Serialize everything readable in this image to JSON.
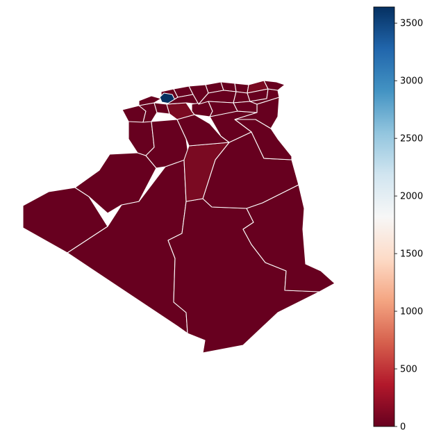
{
  "map": {
    "colormap": "RdBu",
    "colors": {
      "low": "#67001f",
      "low_mid": "#7a0a22",
      "high": "#053061",
      "border": "#ffffff"
    },
    "highlighted_region": "Algiers"
  },
  "colorbar": {
    "min": 0,
    "max": 3640,
    "ticks": [
      {
        "value": 0,
        "label": "0"
      },
      {
        "value": 500,
        "label": "500"
      },
      {
        "value": 1000,
        "label": "1000"
      },
      {
        "value": 1500,
        "label": "1500"
      },
      {
        "value": 2000,
        "label": "2000"
      },
      {
        "value": 2500,
        "label": "2500"
      },
      {
        "value": 3000,
        "label": "3000"
      },
      {
        "value": 3500,
        "label": "3500"
      }
    ],
    "stops": [
      "#053061",
      "#2166ac",
      "#4393c3",
      "#92c5de",
      "#d1e5f0",
      "#f7f7f7",
      "#fddbc7",
      "#f4a582",
      "#d6604d",
      "#b2182b",
      "#67001f"
    ]
  }
}
